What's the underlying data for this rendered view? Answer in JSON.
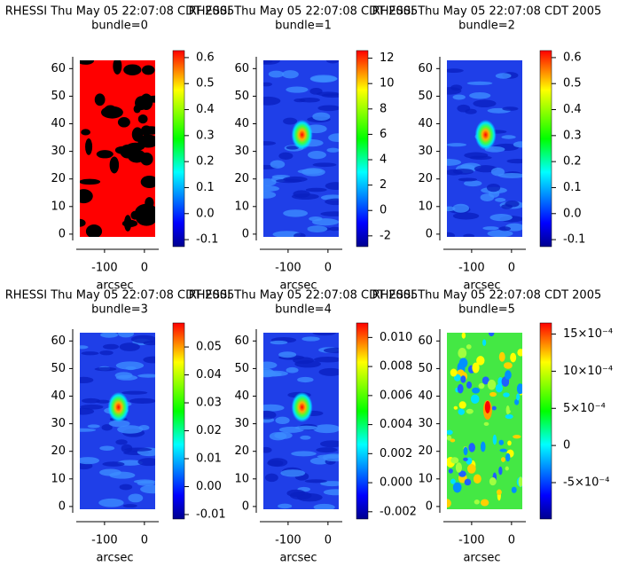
{
  "chart_data": [
    {
      "type": "heatmap",
      "title": "RHESSI Thu May 05 22:07:08 CDT 2005",
      "subtitle": "bundle=0",
      "xlabel": "arcsec",
      "colormap": "jet",
      "xlim": [
        -162,
        27
      ],
      "xticks": [
        -100,
        0
      ],
      "ylim": [
        -1,
        63
      ],
      "yticks": [
        0,
        10,
        20,
        30,
        40,
        50,
        60
      ],
      "zlim": [
        -0.127,
        0.627
      ],
      "zticks": [
        {
          "value": -0.1,
          "label": "-0.1"
        },
        {
          "value": 0,
          "label": "0.0"
        },
        0.1,
        0.2,
        0.3,
        0.4,
        0.5,
        0.6
      ]
    },
    {
      "type": "heatmap",
      "title": "RHESSI Thu May 05 22:07:08 CDT 2005",
      "subtitle": "bundle=1",
      "xlabel": "arcsec",
      "colormap": "jet",
      "xlim": [
        -162,
        27
      ],
      "xticks": [
        -100,
        0
      ],
      "ylim": [
        -1,
        63
      ],
      "yticks": [
        0,
        10,
        20,
        30,
        40,
        50,
        60
      ],
      "zlim": [
        -2.85,
        12.6
      ],
      "zticks": [
        -2,
        0,
        2,
        4,
        6,
        8,
        10,
        12
      ]
    },
    {
      "type": "heatmap",
      "title": "RHESSI Thu May 05 22:07:08 CDT 2005",
      "subtitle": "bundle=2",
      "xlabel": "arcsec",
      "colormap": "jet",
      "xlim": [
        -162,
        27
      ],
      "xticks": [
        -100,
        0
      ],
      "ylim": [
        -1,
        63
      ],
      "yticks": [
        0,
        10,
        20,
        30,
        40,
        50,
        60
      ],
      "zlim": [
        -0.127,
        0.627
      ],
      "zticks": [
        {
          "value": -0.1,
          "label": "-0.1"
        },
        {
          "value": 0,
          "label": "0.0"
        },
        0.1,
        0.2,
        0.3,
        0.4,
        0.5,
        0.6
      ]
    },
    {
      "type": "heatmap",
      "title": "RHESSI Thu May 05 22:07:08 CDT 2005",
      "subtitle": "bundle=3",
      "xlabel": "arcsec",
      "colormap": "jet",
      "xlim": [
        -162,
        27
      ],
      "xticks": [
        -100,
        0
      ],
      "ylim": [
        -1,
        63
      ],
      "yticks": [
        0,
        10,
        20,
        30,
        40,
        50,
        60
      ],
      "zlim": [
        -0.0116,
        0.0586
      ],
      "zticks": [
        -0.01,
        {
          "value": 0,
          "label": "0.00"
        },
        0.01,
        0.02,
        0.03,
        0.04,
        0.05
      ]
    },
    {
      "type": "heatmap",
      "title": "RHESSI Thu May 05 22:07:08 CDT 2005",
      "subtitle": "bundle=4",
      "xlabel": "arcsec",
      "colormap": "jet",
      "xlim": [
        -162,
        27
      ],
      "xticks": [
        -100,
        0
      ],
      "ylim": [
        -1,
        63
      ],
      "yticks": [
        0,
        10,
        20,
        30,
        40,
        50,
        60
      ],
      "zlim": [
        -0.0025,
        0.011
      ],
      "zticks": [
        -0.002,
        {
          "value": 0,
          "label": "0.000"
        },
        0.002,
        0.004,
        0.006,
        0.008,
        {
          "value": 0.01,
          "label": "0.010"
        }
      ]
    },
    {
      "type": "heatmap",
      "title": "RHESSI Thu May 05 22:07:08 CDT 2005",
      "subtitle": "bundle=5",
      "xlabel": "arcsec",
      "colormap": "jet",
      "xlim": [
        -162,
        27
      ],
      "xticks": [
        -100,
        0
      ],
      "ylim": [
        -1,
        63
      ],
      "yticks": [
        0,
        10,
        20,
        30,
        40,
        50,
        60
      ],
      "zlim": [
        -0.00099,
        0.00165
      ],
      "zticks": [
        {
          "value": -0.0005,
          "label": "-5×10⁻⁴"
        },
        0,
        {
          "value": 0.0005,
          "label": "5×10⁻⁴"
        },
        {
          "value": 0.001,
          "label": "10×10⁻⁴"
        },
        {
          "value": 0.0015,
          "label": "15×10⁻⁴"
        }
      ]
    }
  ]
}
